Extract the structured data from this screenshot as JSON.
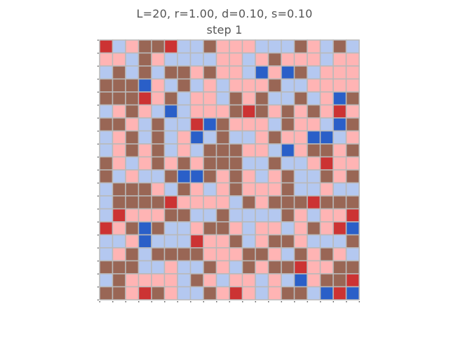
{
  "title_line1": "L=20, r=1.00, d=0.10, s=0.10",
  "title_line2": "step 1",
  "colors": {
    "r": "#cc3333",
    "p": "#ffb4b4",
    "b": "#996655",
    "l": "#b4c8f0",
    "B": "#2a5fc8",
    "grid": "#b9b9b9"
  },
  "grid": [
    "rlpbbrllbppplllbplbl",
    "pplbpllllpplpbppplpp",
    "lblblbbpbpplBpBblppp",
    "bbbBplblplpppbllpppp",
    "bbbrpblpplbpbllblpBb",
    "lpbplBlpppbrbpbpbprp",
    "bbplbllrBbppplbpplBb",
    "lpblblpBlbllpbppBBlp",
    "lpbpblplbbbpplBpbbpb",
    "bplpbpbpbbbllbllprpp",
    "blpllbBBbpbplpbllbpb",
    "lbbbplbplpbpppbllpll",
    "lbbbbrpppplbpbbbrbbb",
    "lrpppbbllbllllbplppr",
    "rpbBbllpbbplpplpbprB",
    "llpBlllrppblpbbplllb",
    "lpblbbbbpppbbplbpbpl",
    "bbbllpllbplbpbbrppbb",
    "lbpppplbplpplplBpbbr",
    "bbprbpllbprplpbblBrB"
  ]
}
